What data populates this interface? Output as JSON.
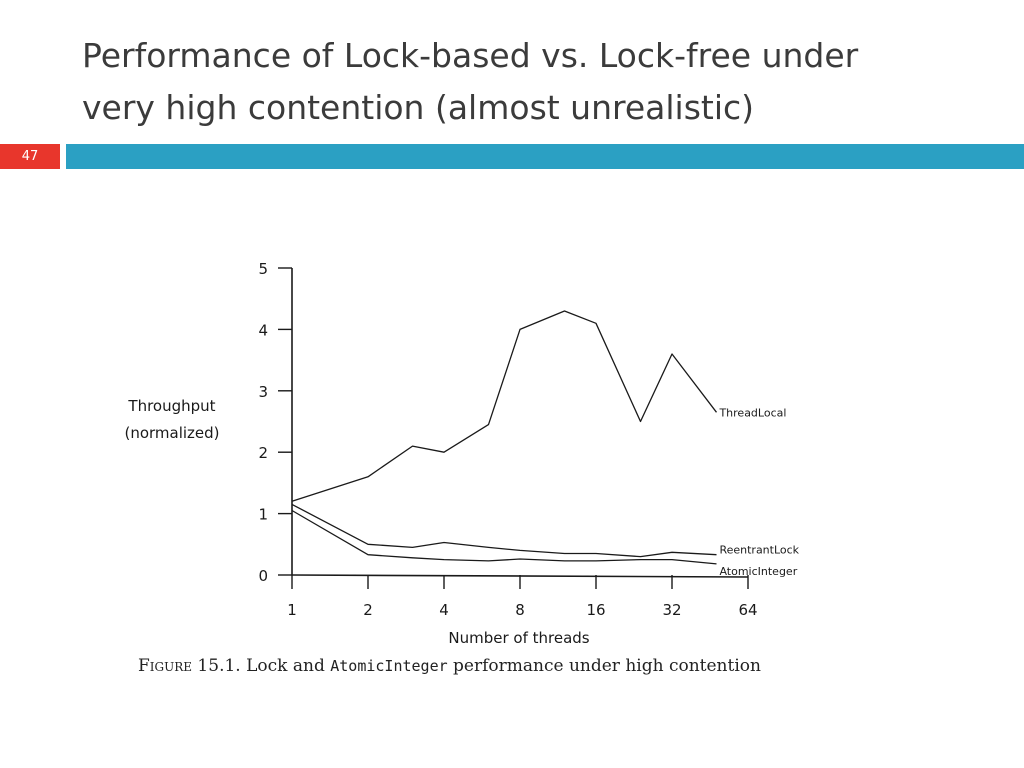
{
  "slide": {
    "title_line1": "Performance of Lock-based vs. Lock-free under",
    "title_line2": "very high contention (almost unrealistic)",
    "page_number": "47",
    "accent_color": "#2ba0c3",
    "badge_color": "#e8362c"
  },
  "caption": {
    "label": "Figure 15.1.",
    "text1": "Lock and",
    "code": "AtomicInteger",
    "text2": "performance under high contention"
  },
  "chart_data": {
    "type": "line",
    "xlabel": "Number of threads",
    "ylabel_line1": "Throughput",
    "ylabel_line2": "(normalized)",
    "x_ticks": [
      "1",
      "2",
      "4",
      "8",
      "16",
      "32",
      "64"
    ],
    "y_ticks": [
      0,
      1,
      2,
      3,
      4,
      5
    ],
    "ylim": [
      0,
      5
    ],
    "x_scale": "log2",
    "xlim": [
      1,
      64
    ],
    "grid": false,
    "series": [
      {
        "name": "ThreadLocal",
        "x": [
          1,
          2,
          3,
          4,
          6,
          8,
          12,
          16,
          24,
          32,
          48
        ],
        "values": [
          1.2,
          1.6,
          2.1,
          2.0,
          2.45,
          4.0,
          4.3,
          4.1,
          2.5,
          3.6,
          2.65
        ]
      },
      {
        "name": "ReentrantLock",
        "x": [
          1,
          2,
          3,
          4,
          6,
          8,
          12,
          16,
          24,
          32,
          48
        ],
        "values": [
          1.15,
          0.5,
          0.45,
          0.53,
          0.45,
          0.4,
          0.35,
          0.35,
          0.3,
          0.37,
          0.33
        ]
      },
      {
        "name": "AtomicInteger",
        "x": [
          1,
          2,
          3,
          4,
          6,
          8,
          12,
          16,
          24,
          32,
          48
        ],
        "values": [
          1.05,
          0.33,
          0.28,
          0.25,
          0.23,
          0.26,
          0.23,
          0.23,
          0.25,
          0.25,
          0.18
        ]
      }
    ]
  }
}
